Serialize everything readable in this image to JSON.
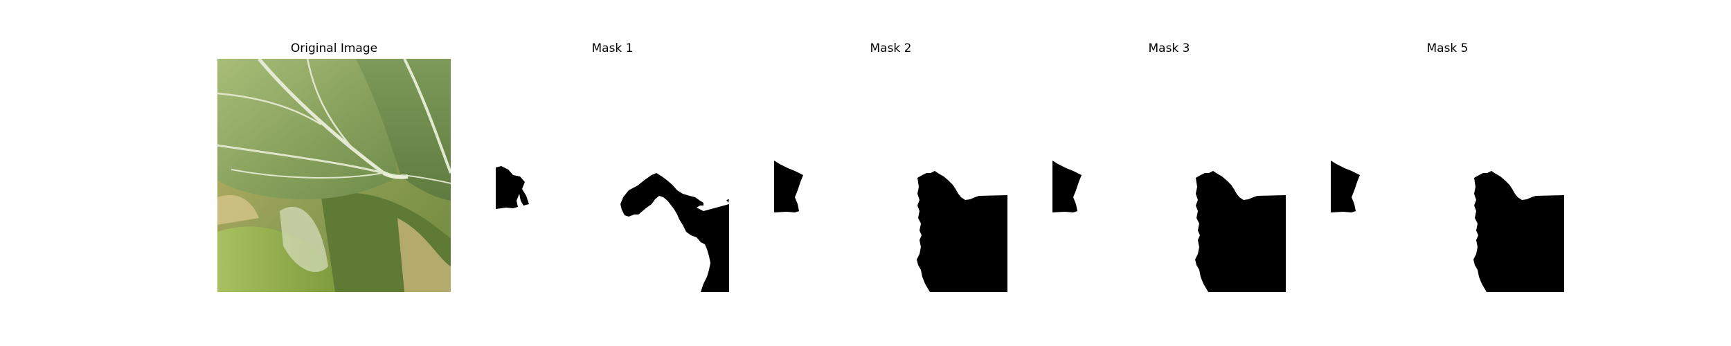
{
  "figure": {
    "panels": [
      {
        "title": "Original Image",
        "kind": "photo",
        "subject": "green-leaf-closeup"
      },
      {
        "title": "Mask 1",
        "kind": "mask"
      },
      {
        "title": "Mask 2",
        "kind": "mask"
      },
      {
        "title": "Mask 3",
        "kind": "mask"
      },
      {
        "title": "Mask 5",
        "kind": "mask"
      }
    ],
    "colors": {
      "background": "#ffffff",
      "mask_fill": "#000000",
      "leaf_light": "#9fb56a",
      "leaf_dark": "#4f6b32",
      "vein": "#e3ead2"
    }
  }
}
